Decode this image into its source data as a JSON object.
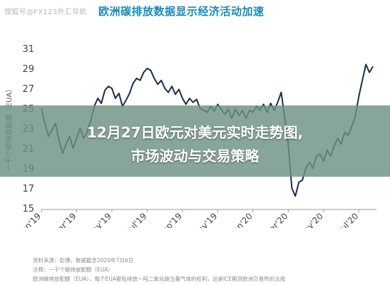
{
  "header": {
    "watermark": "搜狐号@FX123外汇导航",
    "title": "欧洲碳排放数据显示经济活动加速"
  },
  "overlay": {
    "headline_line1": "12月27日欧元对美元实时走势图,",
    "headline_line2": "市场波动与交易策略"
  },
  "footnotes": [
    "资料来源：彭博，数据截至2020年7月6日",
    "注释：一千个碳排放配额（EUA）",
    "欧洲碳排放配额（EUA）。每个EUA都有排放一吨二氧化碳当量气体的权利，这是ICE期货欧洲交易所的法规"
  ],
  "colors": {
    "line": "#1a2f4d",
    "title": "#1a8ab6",
    "axis": "#555555",
    "banner": "#6e9182"
  },
  "chart_data": {
    "type": "line",
    "title": "欧洲碳排放数据显示经济活动加速",
    "ylabel": "一千个碳排放配额（EUA）",
    "xlabel": "",
    "ylim": [
      15,
      31
    ],
    "yticks": [
      15,
      17,
      19,
      21,
      23,
      25,
      27,
      29,
      31
    ],
    "x_range": [
      0,
      19
    ],
    "xticks": [
      {
        "x": 0,
        "label": "Jan'19"
      },
      {
        "x": 2,
        "label": "Mar'19"
      },
      {
        "x": 4,
        "label": "May'19"
      },
      {
        "x": 6,
        "label": "Jul'19"
      },
      {
        "x": 8,
        "label": "Sep'19"
      },
      {
        "x": 10,
        "label": "Nov'19"
      },
      {
        "x": 12,
        "label": "Jan'20"
      },
      {
        "x": 14,
        "label": "Mar'20"
      },
      {
        "x": 16,
        "label": "May'20"
      },
      {
        "x": 18,
        "label": "Jul'20"
      }
    ],
    "grid": false,
    "series": [
      {
        "points": [
          [
            0.0,
            25.0
          ],
          [
            0.2,
            23.5
          ],
          [
            0.4,
            22.2
          ],
          [
            0.6,
            22.8
          ],
          [
            0.8,
            23.5
          ],
          [
            1.0,
            21.8
          ],
          [
            1.2,
            20.5
          ],
          [
            1.4,
            21.4
          ],
          [
            1.6,
            22.2
          ],
          [
            1.8,
            21.0
          ],
          [
            2.0,
            22.0
          ],
          [
            2.2,
            23.0
          ],
          [
            2.4,
            22.0
          ],
          [
            2.6,
            22.6
          ],
          [
            2.8,
            23.8
          ],
          [
            3.0,
            25.2
          ],
          [
            3.2,
            26.0
          ],
          [
            3.4,
            25.5
          ],
          [
            3.6,
            26.8
          ],
          [
            3.8,
            27.2
          ],
          [
            4.0,
            27.0
          ],
          [
            4.2,
            26.0
          ],
          [
            4.4,
            26.5
          ],
          [
            4.6,
            25.2
          ],
          [
            4.8,
            25.8
          ],
          [
            5.0,
            26.5
          ],
          [
            5.2,
            27.5
          ],
          [
            5.4,
            28.0
          ],
          [
            5.6,
            27.8
          ],
          [
            5.8,
            28.6
          ],
          [
            6.0,
            29.0
          ],
          [
            6.2,
            28.8
          ],
          [
            6.4,
            28.0
          ],
          [
            6.6,
            27.4
          ],
          [
            6.8,
            27.8
          ],
          [
            7.0,
            27.0
          ],
          [
            7.2,
            26.6
          ],
          [
            7.4,
            27.2
          ],
          [
            7.6,
            26.4
          ],
          [
            7.8,
            26.9
          ],
          [
            8.0,
            26.0
          ],
          [
            8.2,
            25.4
          ],
          [
            8.4,
            26.0
          ],
          [
            8.6,
            25.6
          ],
          [
            8.8,
            25.9
          ],
          [
            9.0,
            25.0
          ],
          [
            9.2,
            24.8
          ],
          [
            9.4,
            24.6
          ],
          [
            9.6,
            25.2
          ],
          [
            9.8,
            24.7
          ],
          [
            10.0,
            25.4
          ],
          [
            10.2,
            24.9
          ],
          [
            10.4,
            24.4
          ],
          [
            10.6,
            24.9
          ],
          [
            10.8,
            24.0
          ],
          [
            11.0,
            24.9
          ],
          [
            11.2,
            24.3
          ],
          [
            11.4,
            24.8
          ],
          [
            11.6,
            24.0
          ],
          [
            11.8,
            24.8
          ],
          [
            12.0,
            24.6
          ],
          [
            12.2,
            25.2
          ],
          [
            12.4,
            24.8
          ],
          [
            12.6,
            25.4
          ],
          [
            12.8,
            24.6
          ],
          [
            13.0,
            25.5
          ],
          [
            13.2,
            24.8
          ],
          [
            13.4,
            25.6
          ],
          [
            13.6,
            26.6
          ],
          [
            13.8,
            24.0
          ],
          [
            14.0,
            21.4
          ],
          [
            14.2,
            17.0
          ],
          [
            14.4,
            16.2
          ],
          [
            14.6,
            17.6
          ],
          [
            14.8,
            17.8
          ],
          [
            15.0,
            19.0
          ],
          [
            15.2,
            19.6
          ],
          [
            15.4,
            19.0
          ],
          [
            15.6,
            20.2
          ],
          [
            15.8,
            20.4
          ],
          [
            16.0,
            19.7
          ],
          [
            16.2,
            20.8
          ],
          [
            16.4,
            20.2
          ],
          [
            16.6,
            21.2
          ],
          [
            16.8,
            22.0
          ],
          [
            17.0,
            21.4
          ],
          [
            17.2,
            22.6
          ],
          [
            17.4,
            22.3
          ],
          [
            17.6,
            23.2
          ],
          [
            17.8,
            24.2
          ],
          [
            18.0,
            26.2
          ],
          [
            18.2,
            27.8
          ],
          [
            18.4,
            29.4
          ],
          [
            18.6,
            28.6
          ],
          [
            18.8,
            29.2
          ]
        ]
      }
    ]
  }
}
